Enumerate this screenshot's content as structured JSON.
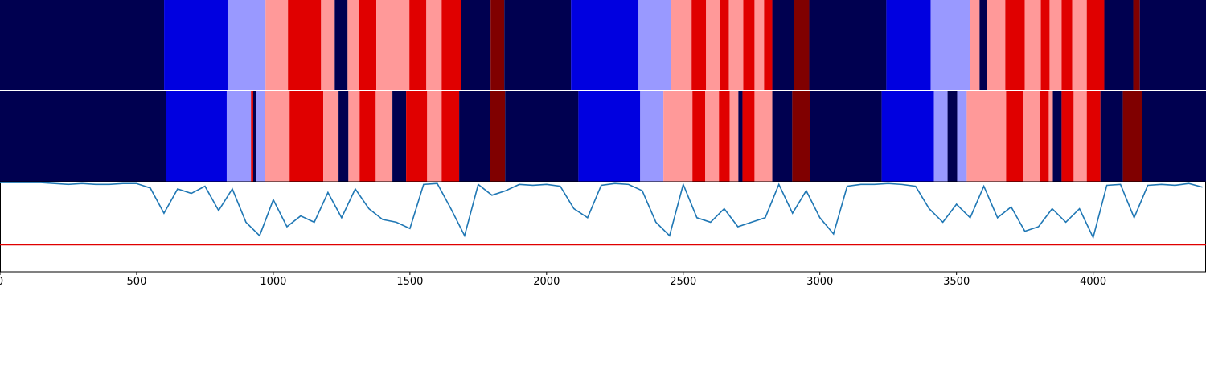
{
  "chart_data": [
    {
      "type": "segments",
      "xlim": [
        0,
        4410
      ],
      "edges": [
        0,
        600,
        832,
        971,
        1053,
        1174,
        1224,
        1271,
        1312,
        1376,
        1497,
        1559,
        1615,
        1685,
        1794,
        1844,
        2088,
        2335,
        2453,
        2529,
        2582,
        2632,
        2665,
        2718,
        2759,
        2794,
        2824,
        2903,
        2959,
        3241,
        3403,
        3547,
        3582,
        3609,
        3676,
        3747,
        3806,
        3838,
        3882,
        3921,
        3974,
        4038,
        4144,
        4168,
        4410
      ],
      "colors": [
        "#000050",
        "#0000e0",
        "#9999ff",
        "#ff9999",
        "#e00000",
        "#ff9999",
        "#000050",
        "#ff9999",
        "#e00000",
        "#ff9999",
        "#e00000",
        "#ff9999",
        "#e00000",
        "#000050",
        "#800000",
        "#000050",
        "#0000e0",
        "#9999ff",
        "#ff9999",
        "#e00000",
        "#ff9999",
        "#e00000",
        "#ff9999",
        "#e00000",
        "#ff9999",
        "#e00000",
        "#000050",
        "#800000",
        "#000050",
        "#0000e0",
        "#9999ff",
        "#ff9999",
        "#000050",
        "#ff9999",
        "#e00000",
        "#ff9999",
        "#e00000",
        "#ff9999",
        "#e00000",
        "#ff9999",
        "#e00000",
        "#000050",
        "#800000",
        "#000050"
      ]
    },
    {
      "type": "segments",
      "xlim": [
        0,
        4410
      ],
      "edges": [
        0,
        606,
        829,
        918,
        926,
        935,
        968,
        1059,
        1182,
        1238,
        1274,
        1315,
        1374,
        1435,
        1485,
        1562,
        1615,
        1679,
        1791,
        1847,
        2115,
        2341,
        2426,
        2532,
        2579,
        2629,
        2668,
        2700,
        2715,
        2759,
        2824,
        2897,
        2962,
        3224,
        3415,
        3465,
        3500,
        3535,
        3679,
        3741,
        3803,
        3835,
        3850,
        3882,
        3926,
        3974,
        4024,
        4106,
        4176,
        4410
      ],
      "colors": [
        "#000050",
        "#0000e0",
        "#9999ff",
        "#e00000",
        "#000050",
        "#9999ff",
        "#ff9999",
        "#e00000",
        "#ff9999",
        "#000050",
        "#ff9999",
        "#e00000",
        "#ff9999",
        "#000050",
        "#e00000",
        "#ff9999",
        "#e00000",
        "#000050",
        "#800000",
        "#000050",
        "#0000e0",
        "#9999ff",
        "#ff9999",
        "#e00000",
        "#ff9999",
        "#e00000",
        "#ff9999",
        "#000050",
        "#e00000",
        "#ff9999",
        "#000050",
        "#800000",
        "#000050",
        "#0000e0",
        "#9999ff",
        "#000050",
        "#9999ff",
        "#ff9999",
        "#e00000",
        "#ff9999",
        "#e00000",
        "#ff9999",
        "#000050",
        "#e00000",
        "#ff9999",
        "#e00000",
        "#000050",
        "#800000",
        "#000050"
      ]
    },
    {
      "type": "line",
      "xlim": [
        0,
        4410
      ],
      "ylim": [
        0,
        1
      ],
      "xticks": [
        0,
        500,
        1000,
        1500,
        2000,
        2500,
        3000,
        3500,
        4000
      ],
      "x": [
        0,
        50,
        100,
        150,
        200,
        250,
        300,
        350,
        400,
        450,
        500,
        550,
        600,
        650,
        700,
        750,
        800,
        850,
        900,
        950,
        1000,
        1050,
        1100,
        1150,
        1200,
        1250,
        1300,
        1350,
        1400,
        1450,
        1500,
        1550,
        1600,
        1650,
        1700,
        1750,
        1800,
        1850,
        1900,
        1950,
        2000,
        2050,
        2100,
        2150,
        2200,
        2250,
        2300,
        2350,
        2400,
        2450,
        2500,
        2550,
        2600,
        2650,
        2700,
        2750,
        2800,
        2850,
        2900,
        2950,
        3000,
        3050,
        3100,
        3150,
        3200,
        3250,
        3300,
        3350,
        3400,
        3450,
        3500,
        3550,
        3600,
        3650,
        3700,
        3750,
        3800,
        3850,
        3900,
        3950,
        4000,
        4050,
        4100,
        4150,
        4200,
        4250,
        4300,
        4350,
        4400
      ],
      "series": [
        {
          "color": "#1f77b4",
          "values": [
            0.99,
            0.99,
            0.99,
            0.99,
            0.98,
            0.97,
            0.98,
            0.97,
            0.97,
            0.98,
            0.98,
            0.93,
            0.65,
            0.92,
            0.87,
            0.95,
            0.68,
            0.92,
            0.55,
            0.4,
            0.8,
            0.5,
            0.62,
            0.55,
            0.88,
            0.6,
            0.92,
            0.7,
            0.58,
            0.55,
            0.48,
            0.97,
            0.98,
            0.7,
            0.4,
            0.97,
            0.85,
            0.9,
            0.97,
            0.96,
            0.97,
            0.95,
            0.7,
            0.6,
            0.96,
            0.98,
            0.97,
            0.9,
            0.55,
            0.4,
            0.97,
            0.6,
            0.55,
            0.7,
            0.5,
            0.55,
            0.6,
            0.97,
            0.65,
            0.9,
            0.6,
            0.42,
            0.95,
            0.97,
            0.97,
            0.98,
            0.97,
            0.95,
            0.7,
            0.55,
            0.75,
            0.6,
            0.95,
            0.6,
            0.72,
            0.45,
            0.5,
            0.7,
            0.55,
            0.7,
            0.38,
            0.96,
            0.97,
            0.6,
            0.96,
            0.97,
            0.96,
            0.98,
            0.94
          ]
        }
      ],
      "threshold": 0.3,
      "threshold_color": "#e00000"
    }
  ]
}
